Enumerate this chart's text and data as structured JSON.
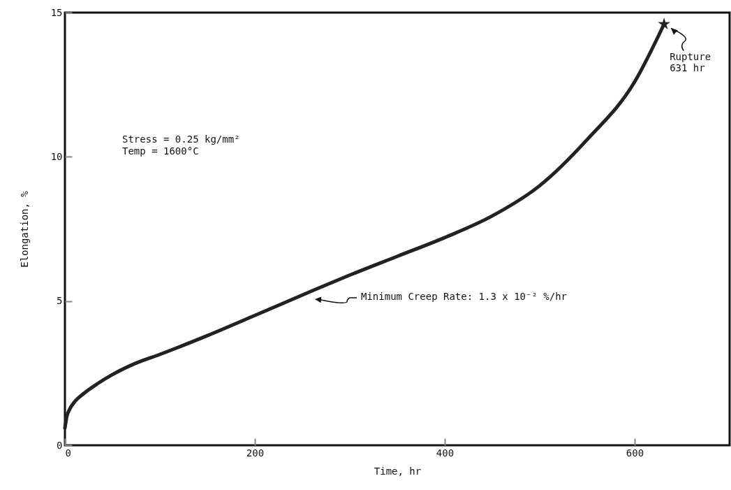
{
  "chart_data": {
    "type": "line",
    "xlabel": "Time, hr",
    "ylabel": "Elongation, %",
    "x": [
      0,
      2,
      5,
      10,
      20,
      35,
      50,
      75,
      100,
      150,
      200,
      260,
      300,
      350,
      400,
      450,
      500,
      550,
      600,
      631
    ],
    "series": [
      {
        "color": "#222222",
        "values": [
          0.6,
          1.0,
          1.25,
          1.5,
          1.8,
          2.15,
          2.45,
          2.85,
          3.15,
          3.8,
          4.5,
          5.35,
          5.9,
          6.55,
          7.2,
          7.95,
          9.0,
          10.6,
          12.6,
          14.6
        ]
      },
      {
        "type": "scatter",
        "marker": "star",
        "color": "#222222",
        "x": [
          631
        ],
        "values": [
          14.6
        ]
      }
    ],
    "xlim": [
      0,
      700
    ],
    "ylim": [
      0,
      15
    ],
    "xticks": [
      0,
      200,
      400,
      600
    ],
    "yticks": [
      0,
      5,
      10,
      15
    ],
    "grid": false,
    "line_style": "solid",
    "annotations": [
      "Stress = 0.25 kg/mm²\nTemp = 1600°C",
      {
        "text": "Rupture\n631 hr",
        "x": 631,
        "y": 14.6
      },
      "Minimum Creep Rate: 1.3 x 10⁻² %/hr"
    ]
  }
}
